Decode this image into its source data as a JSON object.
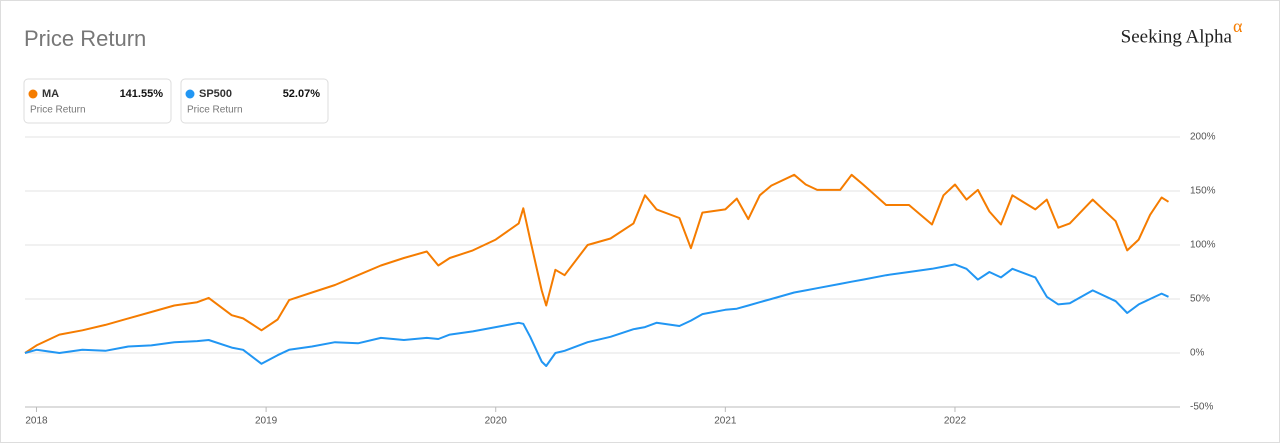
{
  "chart_data": {
    "type": "line",
    "title": "Price Return",
    "brand": "Seeking Alpha",
    "brand_mark": "α",
    "x": [
      2017.95,
      2018.0,
      2018.1,
      2018.2,
      2018.3,
      2018.4,
      2018.5,
      2018.6,
      2018.7,
      2018.75,
      2018.85,
      2018.9,
      2018.98,
      2019.05,
      2019.1,
      2019.2,
      2019.3,
      2019.4,
      2019.5,
      2019.6,
      2019.7,
      2019.75,
      2019.8,
      2019.9,
      2020.0,
      2020.1,
      2020.12,
      2020.15,
      2020.2,
      2020.22,
      2020.26,
      2020.3,
      2020.4,
      2020.5,
      2020.6,
      2020.65,
      2020.7,
      2020.8,
      2020.85,
      2020.9,
      2021.0,
      2021.05,
      2021.1,
      2021.15,
      2021.2,
      2021.3,
      2021.35,
      2021.4,
      2021.5,
      2021.55,
      2021.6,
      2021.7,
      2021.8,
      2021.9,
      2021.95,
      2022.0,
      2022.05,
      2022.1,
      2022.15,
      2022.2,
      2022.25,
      2022.35,
      2022.4,
      2022.45,
      2022.5,
      2022.6,
      2022.7,
      2022.75,
      2022.8,
      2022.85,
      2022.9,
      2022.93
    ],
    "series": [
      {
        "name": "MA",
        "color": "#f57c00",
        "return_label": "141.55%",
        "sublabel": "Price Return",
        "values": [
          0,
          7,
          17,
          21,
          26,
          32,
          38,
          44,
          47,
          51,
          35,
          32,
          21,
          31,
          49,
          56,
          63,
          72,
          81,
          88,
          94,
          81,
          88,
          95,
          105,
          120,
          134,
          105,
          58,
          44,
          77,
          72,
          100,
          106,
          120,
          146,
          133,
          125,
          97,
          130,
          133,
          143,
          124,
          146,
          155,
          165,
          156,
          151,
          151,
          165,
          156,
          137,
          137,
          119,
          146,
          156,
          142,
          151,
          131,
          119,
          146,
          133,
          142,
          116,
          120,
          142,
          122,
          95,
          105,
          128,
          144,
          140
        ]
      },
      {
        "name": "SP500",
        "color": "#2196f3",
        "return_label": "52.07%",
        "sublabel": "Price Return",
        "values": [
          0,
          3,
          0,
          3,
          2,
          6,
          7,
          10,
          11,
          12,
          5,
          3,
          -10,
          -2,
          3,
          6,
          10,
          9,
          14,
          12,
          14,
          13,
          17,
          20,
          24,
          28,
          27,
          15,
          -8,
          -12,
          0,
          2,
          10,
          15,
          22,
          24,
          28,
          25,
          30,
          36,
          40,
          41,
          44,
          47,
          50,
          56,
          58,
          60,
          64,
          66,
          68,
          72,
          75,
          78,
          80,
          82,
          78,
          68,
          75,
          70,
          78,
          70,
          52,
          45,
          46,
          58,
          48,
          37,
          45,
          50,
          55,
          52
        ]
      }
    ],
    "xlim": [
      2017.95,
      2022.98
    ],
    "xticks": [
      2018,
      2019,
      2020,
      2021,
      2022
    ],
    "ylim": [
      -50,
      200
    ],
    "yticks": [
      {
        "value": -50,
        "label": "-50%"
      },
      {
        "value": 0,
        "label": "0%"
      },
      {
        "value": 50,
        "label": "50%"
      },
      {
        "value": 100,
        "label": "100%"
      },
      {
        "value": 150,
        "label": "150%"
      },
      {
        "value": 200,
        "label": "200%"
      }
    ],
    "grid": true
  }
}
